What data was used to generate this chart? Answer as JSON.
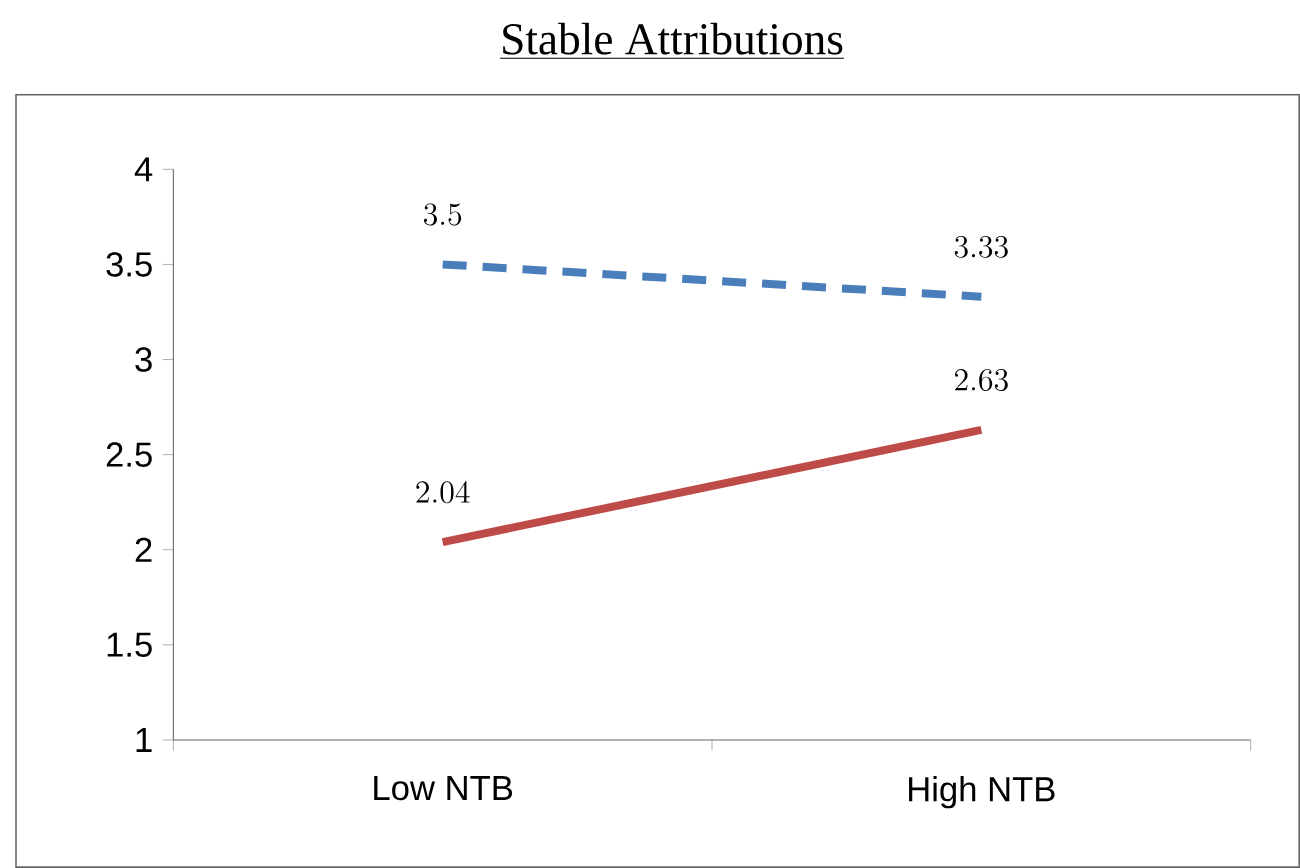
{
  "chart_data": {
    "type": "line",
    "title": "Stable Attributions",
    "categories": [
      "Low NTB",
      "High NTB"
    ],
    "series": [
      {
        "color": "#4a7ebb",
        "values": [
          3.5,
          3.33
        ],
        "line_style": "dashed"
      },
      {
        "color": "#be4b48",
        "values": [
          2.04,
          2.63
        ],
        "line_style": "solid"
      }
    ],
    "ylim": [
      1,
      4
    ],
    "yticks": [
      1,
      1.5,
      2,
      2.5,
      3,
      3.5,
      4
    ],
    "data_labels": true
  }
}
